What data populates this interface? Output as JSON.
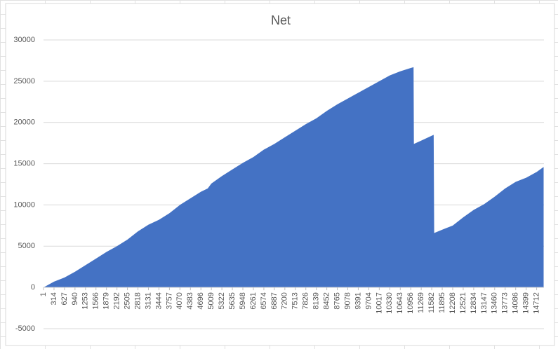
{
  "chart_data": {
    "type": "area",
    "title": "Net",
    "color": "#4472c4",
    "grid": true,
    "x": [
      1,
      314,
      627,
      940,
      1253,
      1566,
      1879,
      2192,
      2505,
      2818,
      3131,
      3444,
      3757,
      4070,
      4383,
      4696,
      4900,
      5009,
      5322,
      5635,
      5948,
      6261,
      6574,
      6887,
      7200,
      7513,
      7826,
      8139,
      8452,
      8765,
      9078,
      9391,
      9704,
      10017,
      10330,
      10643,
      10956,
      11040,
      11050,
      11269,
      11640,
      11655,
      11895,
      12208,
      12521,
      12834,
      13147,
      13460,
      13773,
      14086,
      14399,
      14712,
      14920
    ],
    "values": [
      0,
      700,
      1200,
      1900,
      2700,
      3500,
      4300,
      5000,
      5800,
      6800,
      7600,
      8200,
      9000,
      10000,
      10800,
      11600,
      12000,
      12600,
      13500,
      14300,
      15100,
      15800,
      16700,
      17400,
      18200,
      19000,
      19800,
      20500,
      21400,
      22200,
      22900,
      23600,
      24300,
      25000,
      25700,
      26200,
      26600,
      26700,
      17400,
      17800,
      18500,
      6600,
      7000,
      7500,
      8500,
      9400,
      10100,
      11000,
      12000,
      12800,
      13300,
      14000,
      14600
    ],
    "xlim": [
      1,
      14930
    ],
    "xticks": [
      1,
      314,
      627,
      940,
      1253,
      1566,
      1879,
      2192,
      2505,
      2818,
      3131,
      3444,
      3757,
      4070,
      4383,
      4696,
      5009,
      5322,
      5635,
      5948,
      6261,
      6574,
      6887,
      7200,
      7513,
      7826,
      8139,
      8452,
      8765,
      9078,
      9391,
      9704,
      10017,
      10330,
      10643,
      10956,
      11269,
      11582,
      11895,
      12208,
      12521,
      12834,
      13147,
      13460,
      13773,
      14086,
      14399,
      14712
    ],
    "ylim": [
      -5000,
      30000
    ],
    "yticks": [
      -5000,
      0,
      5000,
      10000,
      15000,
      20000,
      25000,
      30000
    ]
  }
}
